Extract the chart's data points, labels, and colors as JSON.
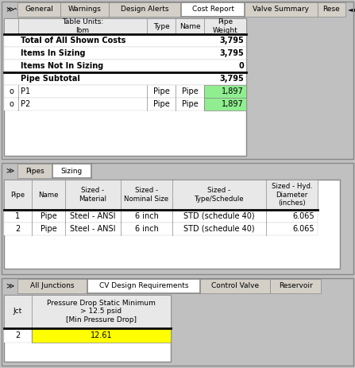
{
  "bg_color": "#c0c0c0",
  "white": "#ffffff",
  "light_gray": "#d4d0c8",
  "green_cell": "#90ee90",
  "yellow_cell": "#ffff00",
  "panel1": {
    "tabs": [
      "General",
      "Warnings",
      "Design Alerts",
      "Cost Report",
      "Valve Summary",
      "Rese"
    ],
    "active_tab": "Cost Report",
    "header": [
      "Table Units:\nlbm",
      "Type",
      "Name",
      "Pipe\nWeight"
    ],
    "summary_rows": [
      [
        "Total of All Shown Costs",
        "3,795"
      ],
      [
        "Items In Sizing",
        "3,795"
      ],
      [
        "Items Not In Sizing",
        "0"
      ],
      [
        "Pipe Subtotal",
        "3,795"
      ]
    ],
    "detail_rows": [
      [
        "o",
        "P1",
        "Pipe",
        "Pipe",
        "1,897"
      ],
      [
        "o",
        "P2",
        "Pipe",
        "Pipe",
        "1,897"
      ]
    ]
  },
  "panel2": {
    "tabs": [
      "Pipes",
      "Sizing"
    ],
    "active_tab": "Sizing",
    "header": [
      "Pipe",
      "Name",
      "Sized -\nMaterial",
      "Sized -\nNominal Size",
      "Sized -\nType/Schedule",
      "Sized - Hyd.\nDiameter\n(inches)"
    ],
    "rows": [
      [
        "1",
        "Pipe",
        "Steel - ANSI",
        "6 inch",
        "STD (schedule 40)",
        "6.065"
      ],
      [
        "2",
        "Pipe",
        "Steel - ANSI",
        "6 inch",
        "STD (schedule 40)",
        "6.065"
      ]
    ]
  },
  "panel3": {
    "tabs": [
      "All Junctions",
      "CV Design Requirements",
      "Control Valve",
      "Reservoir"
    ],
    "active_tab": "CV Design Requirements",
    "header": [
      "Jct",
      "Pressure Drop Static Minimum\n> 12.5 psid\n[Min Pressure Drop]"
    ],
    "rows": [
      [
        "2",
        "12.61"
      ]
    ]
  }
}
